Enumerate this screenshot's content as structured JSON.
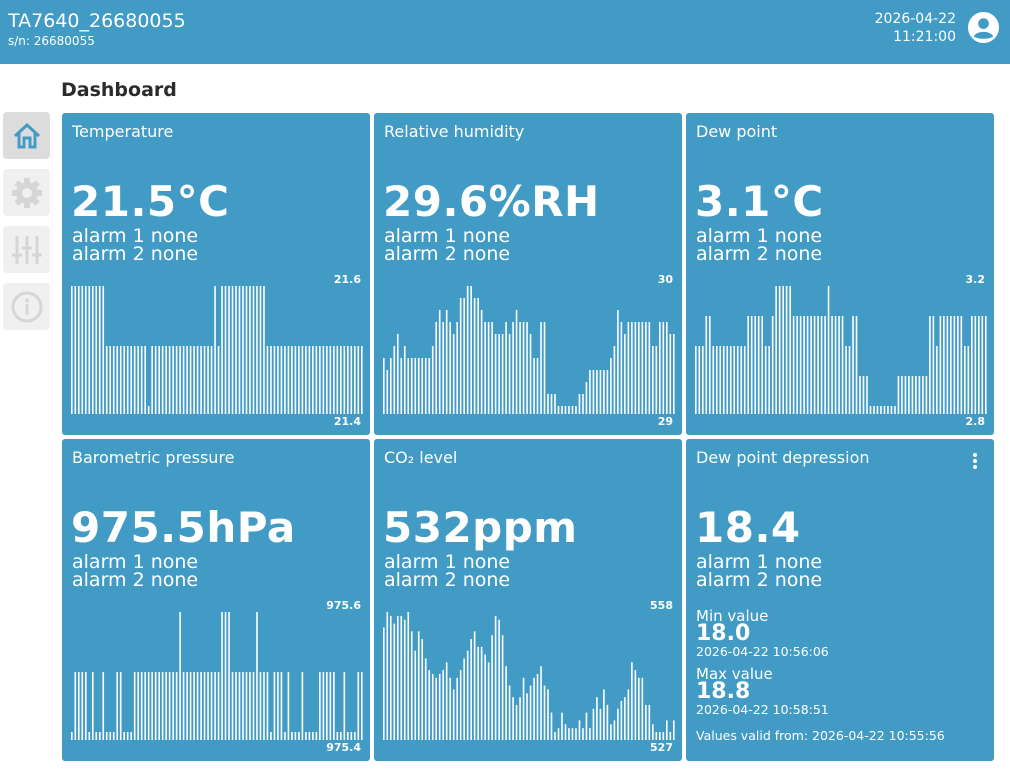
{
  "header": {
    "device_name": "TA7640_26680055",
    "serial": "s/n: 26680055",
    "date": "2026-04-22",
    "time": "11:21:00",
    "avatar_icon": "user-circle-icon"
  },
  "page_title": "Dashboard",
  "sidebar": {
    "items": [
      {
        "name": "home",
        "icon": "home-icon",
        "active": true
      },
      {
        "name": "settings",
        "icon": "gear-icon",
        "active": false
      },
      {
        "name": "adjustments",
        "icon": "sliders-icon",
        "active": false
      },
      {
        "name": "info",
        "icon": "info-icon",
        "active": false
      }
    ]
  },
  "colors": {
    "header": "#429bc5",
    "card": "#429bc5",
    "accent": "#429bc5"
  },
  "cards": [
    {
      "title": "Temperature",
      "value": "21.5°C",
      "alarm1": "alarm 1 none",
      "alarm2": "alarm 2 none",
      "max": "21.6",
      "min": "21.4"
    },
    {
      "title": "Relative humidity",
      "value": "29.6%RH",
      "alarm1": "alarm 1 none",
      "alarm2": "alarm 2 none",
      "max": "30",
      "min": "29"
    },
    {
      "title": "Dew point",
      "value": "3.1°C",
      "alarm1": "alarm 1 none",
      "alarm2": "alarm 2 none",
      "max": "3.2",
      "min": "2.8"
    },
    {
      "title": "Barometric pressure",
      "value": "975.5hPa",
      "alarm1": "alarm 1 none",
      "alarm2": "alarm 2 none",
      "max": "975.6",
      "min": "975.4"
    },
    {
      "title": "CO₂ level",
      "value": "532ppm",
      "alarm1": "alarm 1 none",
      "alarm2": "alarm 2 none",
      "max": "558",
      "min": "527"
    },
    {
      "title": "Dew point depression",
      "value": "18.4",
      "alarm1": "alarm 1 none",
      "alarm2": "alarm 2 none",
      "min_label": "Min value",
      "min_value": "18.0",
      "min_time": "2026-04-22 10:56:06",
      "max_label": "Max value",
      "max_value": "18.8",
      "max_time": "2026-04-22 10:58:51",
      "valid_from": "Values valid from: 2026-04-22 10:55:56",
      "menu_icon": "more-vertical-icon"
    }
  ],
  "chart_data": [
    {
      "type": "bar",
      "ylim": [
        21.4,
        21.6
      ],
      "values": [
        21.6,
        21.6,
        21.6,
        21.6,
        21.6,
        21.6,
        21.6,
        21.6,
        21.6,
        21.6,
        21.5,
        21.5,
        21.5,
        21.5,
        21.5,
        21.5,
        21.5,
        21.5,
        21.5,
        21.5,
        21.5,
        21.5,
        21.4,
        21.5,
        21.5,
        21.5,
        21.5,
        21.5,
        21.5,
        21.5,
        21.5,
        21.5,
        21.5,
        21.5,
        21.5,
        21.5,
        21.5,
        21.5,
        21.5,
        21.5,
        21.5,
        21.6,
        21.5,
        21.6,
        21.6,
        21.6,
        21.6,
        21.6,
        21.6,
        21.6,
        21.6,
        21.6,
        21.6,
        21.6,
        21.6,
        21.6,
        21.5,
        21.5,
        21.5,
        21.5,
        21.5,
        21.5,
        21.5,
        21.5,
        21.5,
        21.5,
        21.5,
        21.5,
        21.5,
        21.5,
        21.5,
        21.5,
        21.5,
        21.5,
        21.5,
        21.5,
        21.5,
        21.5,
        21.5,
        21.5,
        21.5,
        21.5,
        21.5,
        21.5
      ]
    },
    {
      "type": "bar",
      "ylim": [
        29,
        30
      ],
      "values": [
        29.4,
        29.3,
        29.4,
        29.5,
        29.6,
        29.4,
        29.5,
        29.4,
        29.4,
        29.4,
        29.4,
        29.4,
        29.4,
        29.4,
        29.5,
        29.7,
        29.8,
        29.7,
        29.8,
        29.7,
        29.6,
        29.7,
        29.9,
        29.9,
        30.0,
        30.0,
        29.9,
        29.9,
        29.8,
        29.7,
        29.7,
        29.7,
        29.6,
        29.6,
        29.6,
        29.7,
        29.6,
        29.7,
        29.8,
        29.7,
        29.7,
        29.7,
        29.6,
        29.4,
        29.4,
        29.7,
        29.7,
        29.1,
        29.1,
        29.1,
        29.0,
        29.0,
        29.0,
        29.0,
        29.0,
        29.0,
        29.1,
        29.1,
        29.2,
        29.3,
        29.3,
        29.3,
        29.3,
        29.3,
        29.3,
        29.4,
        29.5,
        29.8,
        29.7,
        29.6,
        29.7,
        29.7,
        29.7,
        29.7,
        29.7,
        29.7,
        29.7,
        29.5,
        29.5,
        29.7,
        29.7,
        29.7,
        29.6,
        29.6
      ]
    },
    {
      "type": "bar",
      "ylim": [
        2.8,
        3.2
      ],
      "values": [
        3.0,
        3.0,
        3.0,
        3.1,
        3.1,
        3.0,
        3.0,
        3.0,
        3.0,
        3.0,
        3.0,
        3.0,
        3.0,
        3.0,
        3.0,
        3.1,
        3.1,
        3.1,
        3.1,
        3.1,
        3.0,
        3.0,
        3.1,
        3.2,
        3.2,
        3.2,
        3.2,
        3.2,
        3.1,
        3.1,
        3.1,
        3.1,
        3.1,
        3.1,
        3.1,
        3.1,
        3.1,
        3.1,
        3.2,
        3.1,
        3.1,
        3.1,
        3.1,
        3.0,
        3.0,
        3.1,
        3.1,
        2.9,
        2.9,
        2.9,
        2.8,
        2.8,
        2.8,
        2.8,
        2.8,
        2.8,
        2.8,
        2.8,
        2.9,
        2.9,
        2.9,
        2.9,
        2.9,
        2.9,
        2.9,
        2.9,
        2.9,
        3.1,
        3.1,
        3.0,
        3.1,
        3.1,
        3.1,
        3.1,
        3.1,
        3.1,
        3.1,
        3.0,
        3.0,
        3.1,
        3.1,
        3.1,
        3.1,
        3.1
      ]
    },
    {
      "type": "bar",
      "ylim": [
        975.4,
        975.6
      ],
      "values": [
        975.4,
        975.5,
        975.5,
        975.5,
        975.5,
        975.4,
        975.5,
        975.4,
        975.4,
        975.5,
        975.4,
        975.4,
        975.4,
        975.5,
        975.5,
        975.4,
        975.4,
        975.4,
        975.5,
        975.5,
        975.5,
        975.5,
        975.5,
        975.5,
        975.5,
        975.5,
        975.5,
        975.5,
        975.5,
        975.5,
        975.5,
        975.6,
        975.5,
        975.5,
        975.5,
        975.5,
        975.5,
        975.5,
        975.5,
        975.5,
        975.5,
        975.5,
        975.5,
        975.6,
        975.6,
        975.6,
        975.5,
        975.5,
        975.5,
        975.5,
        975.5,
        975.5,
        975.5,
        975.6,
        975.5,
        975.5,
        975.5,
        975.4,
        975.5,
        975.5,
        975.5,
        975.4,
        975.5,
        975.4,
        975.4,
        975.4,
        975.5,
        975.4,
        975.4,
        975.4,
        975.4,
        975.5,
        975.5,
        975.5,
        975.5,
        975.5,
        975.4,
        975.4,
        975.5,
        975.4,
        975.4,
        975.4,
        975.5,
        975.5
      ]
    },
    {
      "type": "bar",
      "ylim": [
        527,
        558
      ],
      "values": [
        554,
        558,
        557,
        555,
        557,
        557,
        556,
        558,
        553,
        548,
        553,
        551,
        546,
        543,
        542,
        541,
        542,
        543,
        545,
        541,
        538,
        541,
        543,
        546,
        548,
        551,
        553,
        549,
        549,
        547,
        545,
        552,
        557,
        556,
        552,
        544,
        539,
        536,
        534,
        536,
        541,
        537,
        539,
        541,
        542,
        544,
        539,
        538,
        532,
        527,
        528,
        532,
        529,
        528,
        528,
        528,
        530,
        528,
        532,
        528,
        533,
        536,
        533,
        538,
        534,
        529,
        530,
        533,
        535,
        536,
        538,
        545,
        543,
        541,
        541,
        534,
        534,
        529,
        527,
        527,
        527,
        530,
        527,
        530
      ]
    }
  ]
}
